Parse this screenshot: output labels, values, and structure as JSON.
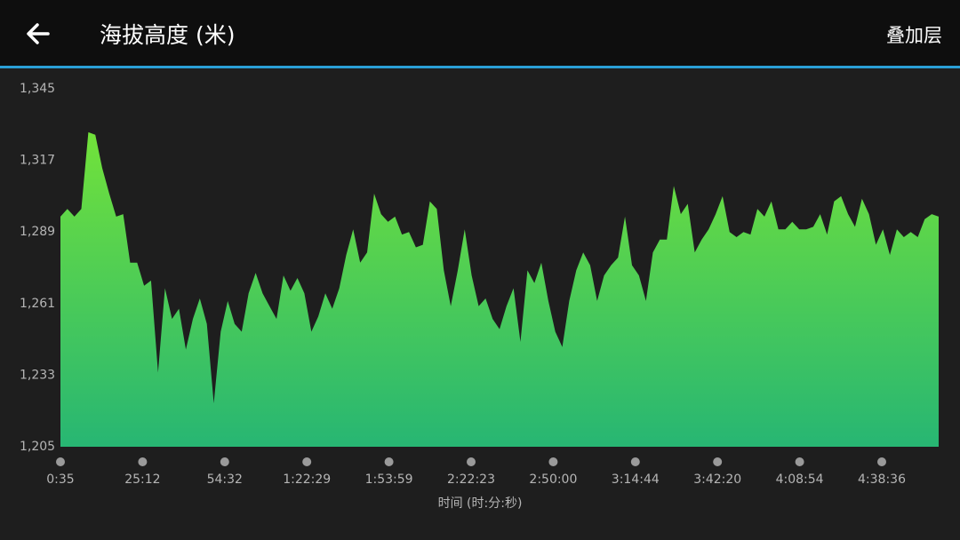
{
  "header": {
    "title": "海拔高度 (米)",
    "action": "叠加层"
  },
  "chart_data": {
    "type": "area",
    "x_label": "时间 (时:分:秒)",
    "x_tick_labels": [
      "0:35",
      "25:12",
      "54:32",
      "1:22:29",
      "1:53:59",
      "2:22:23",
      "2:50:00",
      "3:14:44",
      "3:42:20",
      "4:08:54",
      "4:38:36"
    ],
    "ylim": [
      1205,
      1345
    ],
    "yticks": [
      {
        "value": 1205,
        "label": "1,205"
      },
      {
        "value": 1233,
        "label": "1,233"
      },
      {
        "value": 1261,
        "label": "1,261"
      },
      {
        "value": 1289,
        "label": "1,289"
      },
      {
        "value": 1317,
        "label": "1,317"
      },
      {
        "value": 1345,
        "label": "1,345"
      }
    ],
    "values": [
      1295,
      1298,
      1295,
      1298,
      1328,
      1327,
      1314,
      1304,
      1295,
      1296,
      1277,
      1277,
      1268,
      1270,
      1234,
      1267,
      1255,
      1259,
      1243,
      1255,
      1263,
      1253,
      1222,
      1250,
      1262,
      1253,
      1250,
      1265,
      1273,
      1265,
      1260,
      1255,
      1272,
      1266,
      1271,
      1265,
      1250,
      1256,
      1265,
      1259,
      1267,
      1280,
      1290,
      1277,
      1281,
      1304,
      1296,
      1293,
      1295,
      1288,
      1289,
      1283,
      1284,
      1301,
      1298,
      1274,
      1260,
      1274,
      1290,
      1272,
      1260,
      1263,
      1255,
      1251,
      1260,
      1267,
      1246,
      1274,
      1269,
      1277,
      1262,
      1250,
      1244,
      1262,
      1274,
      1281,
      1276,
      1262,
      1272,
      1276,
      1279,
      1295,
      1276,
      1272,
      1262,
      1281,
      1286,
      1286,
      1307,
      1296,
      1300,
      1281,
      1286,
      1290,
      1296,
      1303,
      1289,
      1287,
      1289,
      1288,
      1298,
      1295,
      1301,
      1290,
      1290,
      1293,
      1290,
      1290,
      1291,
      1296,
      1288,
      1301,
      1303,
      1296,
      1291,
      1302,
      1296,
      1284,
      1290,
      1280,
      1290,
      1287,
      1289,
      1287,
      1294,
      1296,
      1295
    ]
  }
}
